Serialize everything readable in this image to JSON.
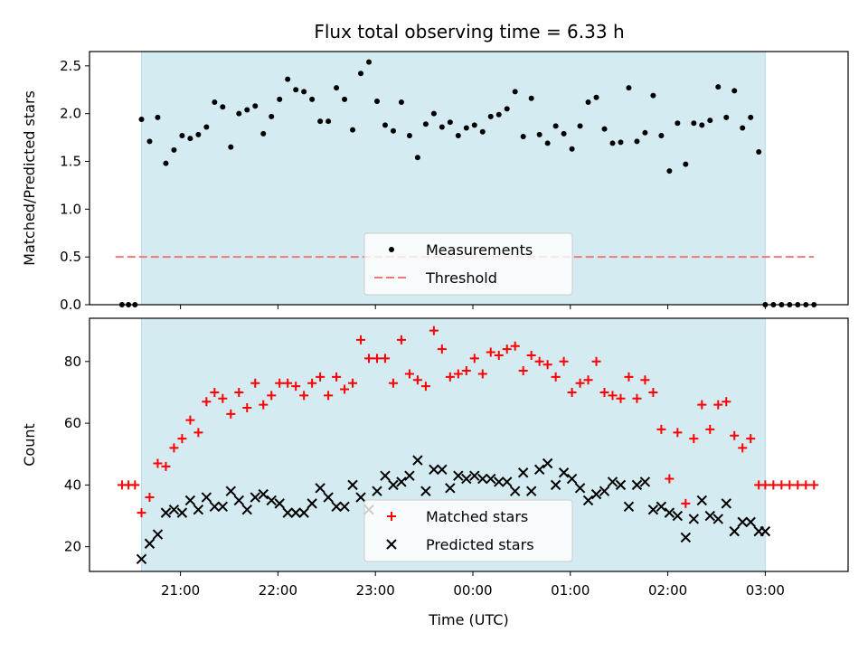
{
  "title": "Flux total observing time = 6.33 h",
  "colors": {
    "shade": "#d4ebf1",
    "shade_edge": "#b9dbe4",
    "threshold": "#f07878",
    "matched": "#ff0000",
    "predicted": "#000000",
    "measurement": "#000000"
  },
  "chart_data": [
    {
      "type": "scatter",
      "ylabel": "Matched/Predicted stars",
      "xlim": [
        "20:04",
        "03:51"
      ],
      "ylim": [
        0,
        2.65
      ],
      "yticks": [
        "0.0",
        "0.5",
        "1.0",
        "1.5",
        "2.0",
        "2.5"
      ],
      "shaded_span": [
        "20:36",
        "03:00"
      ],
      "threshold": 0.5,
      "threshold_span": [
        "20:20",
        "03:30"
      ],
      "legend": {
        "position": "lower-center",
        "entries": [
          "Measurements",
          "Threshold"
        ]
      },
      "series": [
        {
          "name": "Measurements",
          "marker": "dot",
          "x": [
            "20:24",
            "20:28",
            "20:32",
            "20:36",
            "20:41",
            "20:46",
            "20:51",
            "20:56",
            "21:01",
            "21:06",
            "21:11",
            "21:16",
            "21:21",
            "21:26",
            "21:31",
            "21:36",
            "21:41",
            "21:46",
            "21:51",
            "21:56",
            "22:01",
            "22:06",
            "22:11",
            "22:16",
            "22:21",
            "22:26",
            "22:31",
            "22:36",
            "22:41",
            "22:46",
            "22:51",
            "22:56",
            "23:01",
            "23:06",
            "23:11",
            "23:16",
            "23:21",
            "23:26",
            "23:31",
            "23:36",
            "23:41",
            "23:46",
            "23:51",
            "23:56",
            "00:01",
            "00:06",
            "00:11",
            "00:16",
            "00:21",
            "00:26",
            "00:31",
            "00:36",
            "00:41",
            "00:46",
            "00:51",
            "00:56",
            "01:01",
            "01:06",
            "01:11",
            "01:16",
            "01:21",
            "01:26",
            "01:31",
            "01:36",
            "01:41",
            "01:46",
            "01:51",
            "01:56",
            "02:01",
            "02:06",
            "02:11",
            "02:16",
            "02:21",
            "02:26",
            "02:31",
            "02:36",
            "02:41",
            "02:46",
            "02:51",
            "02:56",
            "03:00",
            "03:05",
            "03:10",
            "03:15",
            "03:20",
            "03:25",
            "03:30"
          ],
          "y": [
            0,
            0,
            0,
            1.94,
            1.71,
            1.96,
            1.48,
            1.62,
            1.77,
            1.74,
            1.78,
            1.86,
            2.12,
            2.07,
            1.65,
            2.0,
            2.04,
            2.08,
            1.79,
            1.97,
            2.15,
            2.36,
            2.25,
            2.23,
            2.15,
            1.92,
            1.92,
            2.27,
            2.15,
            1.83,
            2.42,
            2.54,
            2.13,
            1.88,
            1.82,
            2.12,
            1.77,
            1.54,
            1.89,
            2.0,
            1.86,
            1.91,
            1.77,
            1.85,
            1.88,
            1.81,
            1.97,
            1.99,
            2.05,
            2.23,
            1.76,
            2.16,
            1.78,
            1.69,
            1.87,
            1.79,
            1.63,
            1.87,
            2.12,
            2.17,
            1.84,
            1.69,
            1.7,
            2.27,
            1.71,
            1.8,
            2.19,
            1.77,
            1.4,
            1.9,
            1.47,
            1.9,
            1.88,
            1.93,
            2.28,
            1.96,
            2.24,
            1.85,
            1.96,
            1.6,
            0,
            0,
            0,
            0,
            0,
            0,
            0
          ]
        }
      ]
    },
    {
      "type": "scatter",
      "xlabel": "Time (UTC)",
      "ylabel": "Count",
      "xlim": [
        "20:04",
        "03:51"
      ],
      "ylim": [
        12,
        94
      ],
      "yticks": [
        "20",
        "40",
        "60",
        "80"
      ],
      "xticks": [
        "21:00",
        "22:00",
        "23:00",
        "00:00",
        "01:00",
        "02:00",
        "03:00"
      ],
      "shaded_span": [
        "20:36",
        "03:00"
      ],
      "legend": {
        "position": "lower-center",
        "entries": [
          "Matched stars",
          "Predicted stars"
        ]
      },
      "series": [
        {
          "name": "Matched stars",
          "marker": "plus",
          "x": [
            "20:24",
            "20:28",
            "20:32",
            "20:36",
            "20:41",
            "20:46",
            "20:51",
            "20:56",
            "21:01",
            "21:06",
            "21:11",
            "21:16",
            "21:21",
            "21:26",
            "21:31",
            "21:36",
            "21:41",
            "21:46",
            "21:51",
            "21:56",
            "22:01",
            "22:06",
            "22:11",
            "22:16",
            "22:21",
            "22:26",
            "22:31",
            "22:36",
            "22:41",
            "22:46",
            "22:51",
            "22:56",
            "23:01",
            "23:06",
            "23:11",
            "23:16",
            "23:21",
            "23:26",
            "23:31",
            "23:36",
            "23:41",
            "23:46",
            "23:51",
            "23:56",
            "00:01",
            "00:06",
            "00:11",
            "00:16",
            "00:21",
            "00:26",
            "00:31",
            "00:36",
            "00:41",
            "00:46",
            "00:51",
            "00:56",
            "01:01",
            "01:06",
            "01:11",
            "01:16",
            "01:21",
            "01:26",
            "01:31",
            "01:36",
            "01:41",
            "01:46",
            "01:51",
            "01:56",
            "02:01",
            "02:06",
            "02:11",
            "02:16",
            "02:21",
            "02:26",
            "02:31",
            "02:36",
            "02:41",
            "02:46",
            "02:51",
            "02:56",
            "03:00",
            "03:05",
            "03:10",
            "03:15",
            "03:20",
            "03:25",
            "03:30"
          ],
          "y": [
            40,
            40,
            40,
            31,
            36,
            47,
            46,
            52,
            55,
            61,
            57,
            67,
            70,
            68,
            63,
            70,
            65,
            73,
            66,
            69,
            73,
            73,
            72,
            69,
            73,
            75,
            69,
            75,
            71,
            73,
            87,
            81,
            81,
            81,
            73,
            87,
            76,
            74,
            72,
            90,
            84,
            75,
            76,
            77,
            81,
            76,
            83,
            82,
            84,
            85,
            77,
            82,
            80,
            79,
            75,
            80,
            70,
            73,
            74,
            80,
            70,
            69,
            68,
            75,
            68,
            74,
            70,
            58,
            42,
            57,
            34,
            55,
            66,
            58,
            66,
            67,
            56,
            52,
            55,
            40,
            40,
            40,
            40,
            40,
            40,
            40,
            40
          ]
        },
        {
          "name": "Predicted stars",
          "marker": "x",
          "x": [
            "20:36",
            "20:41",
            "20:46",
            "20:51",
            "20:56",
            "21:01",
            "21:06",
            "21:11",
            "21:16",
            "21:21",
            "21:26",
            "21:31",
            "21:36",
            "21:41",
            "21:46",
            "21:51",
            "21:56",
            "22:01",
            "22:06",
            "22:11",
            "22:16",
            "22:21",
            "22:26",
            "22:31",
            "22:36",
            "22:41",
            "22:46",
            "22:51",
            "22:56",
            "23:01",
            "23:06",
            "23:11",
            "23:16",
            "23:21",
            "23:26",
            "23:31",
            "23:36",
            "23:41",
            "23:46",
            "23:51",
            "23:56",
            "00:01",
            "00:06",
            "00:11",
            "00:16",
            "00:21",
            "00:26",
            "00:31",
            "00:36",
            "00:41",
            "00:46",
            "00:51",
            "00:56",
            "01:01",
            "01:06",
            "01:11",
            "01:16",
            "01:21",
            "01:26",
            "01:31",
            "01:36",
            "01:41",
            "01:46",
            "01:51",
            "01:56",
            "02:01",
            "02:06",
            "02:11",
            "02:16",
            "02:21",
            "02:26",
            "02:31",
            "02:36",
            "02:41",
            "02:46",
            "02:51",
            "02:56",
            "03:00"
          ],
          "y": [
            16,
            21,
            24,
            31,
            32,
            31,
            35,
            32,
            36,
            33,
            33,
            38,
            35,
            32,
            36,
            37,
            35,
            34,
            31,
            31,
            31,
            34,
            39,
            36,
            33,
            33,
            40,
            36,
            32,
            38,
            43,
            40,
            41,
            43,
            48,
            38,
            45,
            45,
            39,
            43,
            42,
            43,
            42,
            42,
            41,
            41,
            38,
            44,
            38,
            45,
            47,
            40,
            44,
            42,
            39,
            35,
            37,
            38,
            41,
            40,
            33,
            40,
            41,
            32,
            33,
            31,
            30,
            23,
            29,
            35,
            30,
            29,
            34,
            25,
            28,
            28,
            25,
            25
          ]
        }
      ]
    }
  ]
}
